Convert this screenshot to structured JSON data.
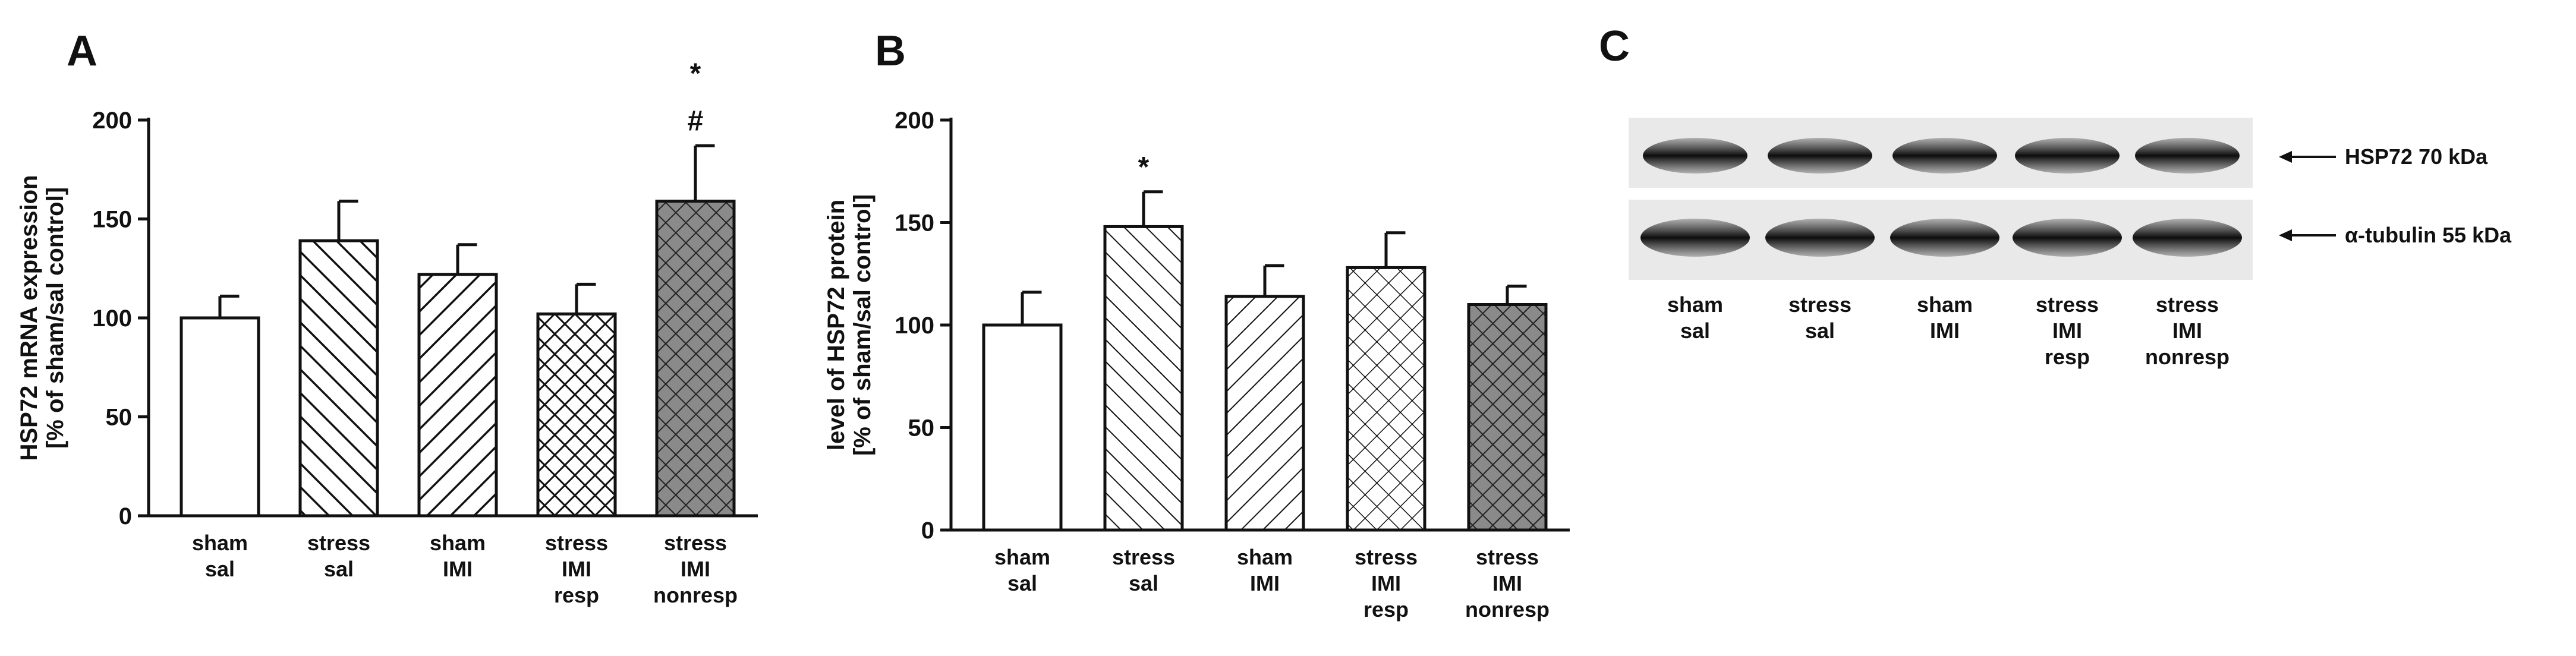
{
  "panels": [
    {
      "letter": "A"
    },
    {
      "letter": "B"
    },
    {
      "letter": "C"
    }
  ],
  "chart_data": [
    {
      "type": "bar",
      "panel": "A",
      "ylabel": [
        "HSP72 mRNA expression",
        "[% of sham/sal control]"
      ],
      "ylim": [
        0,
        200
      ],
      "yticks": [
        "0",
        "50",
        "100",
        "150",
        "200"
      ],
      "categories": [
        [
          "sham",
          "sal"
        ],
        [
          "stress",
          "sal"
        ],
        [
          "sham",
          "IMI"
        ],
        [
          "stress",
          "IMI",
          "resp"
        ],
        [
          "stress",
          "IMI",
          "nonresp"
        ]
      ],
      "values": [
        100,
        139,
        122,
        102,
        159
      ],
      "errors": [
        11,
        20,
        15,
        15,
        28
      ],
      "annotations": [
        null,
        null,
        null,
        null,
        [
          "*",
          "#"
        ]
      ],
      "patterns": [
        "white",
        "diag-right-wide",
        "diag-left",
        "crosshatch-dense",
        "crosshatch-gray"
      ]
    },
    {
      "type": "bar",
      "panel": "B",
      "ylabel": [
        "level of HSP72 protein",
        "[% of sham/sal control]"
      ],
      "ylim": [
        0,
        200
      ],
      "yticks": [
        "0",
        "50",
        "100",
        "150",
        "200"
      ],
      "categories": [
        [
          "sham",
          "sal"
        ],
        [
          "stress",
          "sal"
        ],
        [
          "sham",
          "IMI"
        ],
        [
          "stress",
          "IMI",
          "resp"
        ],
        [
          "stress",
          "IMI",
          "nonresp"
        ]
      ],
      "values": [
        100,
        148,
        114,
        128,
        110
      ],
      "errors": [
        16,
        17,
        15,
        17,
        9
      ],
      "annotations": [
        null,
        [
          "*"
        ],
        null,
        null,
        null
      ],
      "patterns": [
        "white",
        "diag-right-thin",
        "diag-left-thin",
        "crosshatch-light",
        "crosshatch-gray"
      ]
    }
  ],
  "blot": {
    "bands": [
      {
        "label": "HSP72 70 kDa"
      },
      {
        "label": "α-tubulin 55 kDa"
      }
    ],
    "lanes": [
      [
        "sham",
        "sal"
      ],
      [
        "stress",
        "sal"
      ],
      [
        "sham",
        "IMI"
      ],
      [
        "stress",
        "IMI",
        "resp"
      ],
      [
        "stress",
        "IMI",
        "nonresp"
      ]
    ]
  }
}
